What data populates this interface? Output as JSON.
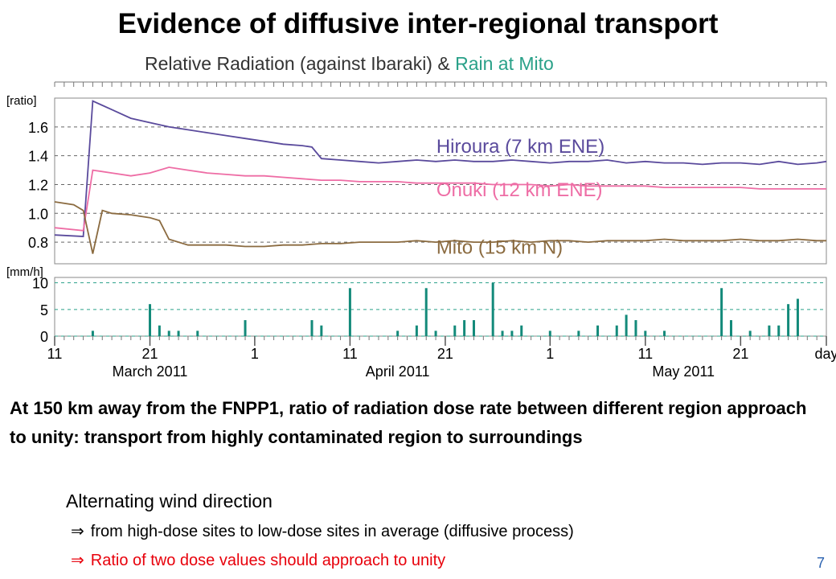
{
  "slide": {
    "title": "Evidence of diffusive inter-regional transport",
    "body": "At 150 km away from the FNPP1, ratio of radiation dose rate between different region approach to unity: transport from highly contaminated region to surroundings",
    "subheading": "Alternating wind direction",
    "bullets": [
      {
        "arrow": "⇒",
        "text": "from high-dose sites to low-dose sites in average (diffusive process)"
      },
      {
        "arrow": "⇒",
        "text": "Ratio of two dose values should approach to unity"
      }
    ],
    "page_number": "7"
  },
  "chart_data": {
    "type": "line",
    "title_parts": [
      "Relative Radiation (against Ibaraki)",
      " & ",
      "Rain at Mito"
    ],
    "title_colors": [
      "#333333",
      "#333333",
      "#2aa189"
    ],
    "x": {
      "range": [
        0,
        81
      ],
      "tick_labels": [
        "11",
        "21",
        "1",
        "11",
        "21",
        "1",
        "11",
        "21",
        "day"
      ],
      "tick_days": [
        0,
        10,
        21,
        31,
        41,
        52,
        62,
        72,
        81
      ],
      "month_labels": [
        "March 2011",
        "April 2011",
        "May 2011"
      ],
      "month_label_days": [
        10,
        36,
        66
      ]
    },
    "top_panel": {
      "ylabel": "[ratio]",
      "ylim": [
        0.65,
        1.8
      ],
      "ticks": [
        "1.6",
        "1.4",
        "1.2",
        "1.0",
        "0.8"
      ],
      "tick_values": [
        1.6,
        1.4,
        1.2,
        1.0,
        0.8
      ],
      "series": [
        {
          "name": "Hiroura (7 km ENE)",
          "color": "#5a4a9c",
          "points": [
            [
              0,
              0.85
            ],
            [
              3,
              0.84
            ],
            [
              4,
              1.78
            ],
            [
              5,
              1.75
            ],
            [
              6,
              1.72
            ],
            [
              8,
              1.66
            ],
            [
              10,
              1.63
            ],
            [
              12,
              1.6
            ],
            [
              14,
              1.58
            ],
            [
              16,
              1.56
            ],
            [
              18,
              1.54
            ],
            [
              20,
              1.52
            ],
            [
              22,
              1.5
            ],
            [
              24,
              1.48
            ],
            [
              26,
              1.47
            ],
            [
              27,
              1.46
            ],
            [
              28,
              1.38
            ],
            [
              30,
              1.37
            ],
            [
              32,
              1.36
            ],
            [
              34,
              1.35
            ],
            [
              36,
              1.36
            ],
            [
              38,
              1.37
            ],
            [
              40,
              1.36
            ],
            [
              42,
              1.37
            ],
            [
              44,
              1.36
            ],
            [
              46,
              1.36
            ],
            [
              48,
              1.37
            ],
            [
              50,
              1.36
            ],
            [
              52,
              1.35
            ],
            [
              54,
              1.36
            ],
            [
              56,
              1.36
            ],
            [
              58,
              1.37
            ],
            [
              60,
              1.35
            ],
            [
              62,
              1.36
            ],
            [
              64,
              1.35
            ],
            [
              66,
              1.35
            ],
            [
              68,
              1.34
            ],
            [
              70,
              1.35
            ],
            [
              72,
              1.35
            ],
            [
              74,
              1.34
            ],
            [
              76,
              1.36
            ],
            [
              78,
              1.34
            ],
            [
              80,
              1.35
            ],
            [
              81,
              1.36
            ]
          ]
        },
        {
          "name": "Onuki (12 km ENE)",
          "color": "#ee6da5",
          "points": [
            [
              0,
              0.9
            ],
            [
              3,
              0.88
            ],
            [
              4,
              1.3
            ],
            [
              6,
              1.28
            ],
            [
              8,
              1.26
            ],
            [
              10,
              1.28
            ],
            [
              12,
              1.32
            ],
            [
              14,
              1.3
            ],
            [
              16,
              1.28
            ],
            [
              18,
              1.27
            ],
            [
              20,
              1.26
            ],
            [
              22,
              1.26
            ],
            [
              24,
              1.25
            ],
            [
              26,
              1.24
            ],
            [
              28,
              1.23
            ],
            [
              30,
              1.23
            ],
            [
              32,
              1.22
            ],
            [
              34,
              1.22
            ],
            [
              36,
              1.22
            ],
            [
              38,
              1.21
            ],
            [
              40,
              1.21
            ],
            [
              42,
              1.21
            ],
            [
              44,
              1.21
            ],
            [
              46,
              1.2
            ],
            [
              48,
              1.2
            ],
            [
              50,
              1.2
            ],
            [
              52,
              1.19
            ],
            [
              54,
              1.2
            ],
            [
              56,
              1.19
            ],
            [
              58,
              1.19
            ],
            [
              60,
              1.19
            ],
            [
              62,
              1.19
            ],
            [
              64,
              1.18
            ],
            [
              66,
              1.18
            ],
            [
              68,
              1.18
            ],
            [
              70,
              1.18
            ],
            [
              72,
              1.18
            ],
            [
              74,
              1.17
            ],
            [
              76,
              1.17
            ],
            [
              78,
              1.17
            ],
            [
              80,
              1.17
            ],
            [
              81,
              1.17
            ]
          ]
        },
        {
          "name": "Mito (15 km N)",
          "color": "#8b6b40",
          "points": [
            [
              0,
              1.08
            ],
            [
              2,
              1.06
            ],
            [
              3,
              1.02
            ],
            [
              4,
              0.72
            ],
            [
              5,
              1.02
            ],
            [
              6,
              1.0
            ],
            [
              8,
              0.99
            ],
            [
              10,
              0.97
            ],
            [
              11,
              0.95
            ],
            [
              12,
              0.82
            ],
            [
              14,
              0.78
            ],
            [
              16,
              0.78
            ],
            [
              18,
              0.78
            ],
            [
              20,
              0.77
            ],
            [
              22,
              0.77
            ],
            [
              24,
              0.78
            ],
            [
              26,
              0.78
            ],
            [
              28,
              0.79
            ],
            [
              30,
              0.79
            ],
            [
              32,
              0.8
            ],
            [
              34,
              0.8
            ],
            [
              36,
              0.8
            ],
            [
              38,
              0.81
            ],
            [
              40,
              0.8
            ],
            [
              42,
              0.81
            ],
            [
              44,
              0.8
            ],
            [
              46,
              0.8
            ],
            [
              48,
              0.81
            ],
            [
              50,
              0.8
            ],
            [
              52,
              0.81
            ],
            [
              54,
              0.81
            ],
            [
              56,
              0.8
            ],
            [
              58,
              0.81
            ],
            [
              60,
              0.81
            ],
            [
              62,
              0.81
            ],
            [
              64,
              0.82
            ],
            [
              66,
              0.81
            ],
            [
              68,
              0.81
            ],
            [
              70,
              0.81
            ],
            [
              72,
              0.82
            ],
            [
              74,
              0.81
            ],
            [
              76,
              0.81
            ],
            [
              78,
              0.82
            ],
            [
              80,
              0.81
            ],
            [
              81,
              0.81
            ]
          ]
        }
      ]
    },
    "bottom_panel": {
      "ylabel": "[mm/h]",
      "ylim": [
        0,
        11
      ],
      "ticks": [
        "10",
        "5",
        "0"
      ],
      "tick_values": [
        10,
        5,
        0
      ],
      "series": [
        {
          "name": "Rain at Mito",
          "color": "#138a7a",
          "bars": [
            [
              4,
              1
            ],
            [
              10,
              6
            ],
            [
              11,
              2
            ],
            [
              12,
              1
            ],
            [
              13,
              1
            ],
            [
              15,
              1
            ],
            [
              20,
              3
            ],
            [
              27,
              3
            ],
            [
              28,
              2
            ],
            [
              31,
              9
            ],
            [
              36,
              1
            ],
            [
              38,
              2
            ],
            [
              39,
              9
            ],
            [
              40,
              1
            ],
            [
              42,
              2
            ],
            [
              43,
              3
            ],
            [
              44,
              3
            ],
            [
              46,
              10
            ],
            [
              47,
              1
            ],
            [
              48,
              1
            ],
            [
              49,
              2
            ],
            [
              52,
              1
            ],
            [
              55,
              1
            ],
            [
              57,
              2
            ],
            [
              59,
              2
            ],
            [
              60,
              4
            ],
            [
              61,
              3
            ],
            [
              62,
              1
            ],
            [
              64,
              1
            ],
            [
              70,
              9
            ],
            [
              71,
              3
            ],
            [
              73,
              1
            ],
            [
              75,
              2
            ],
            [
              76,
              2
            ],
            [
              77,
              6
            ],
            [
              78,
              7
            ]
          ]
        }
      ]
    }
  }
}
